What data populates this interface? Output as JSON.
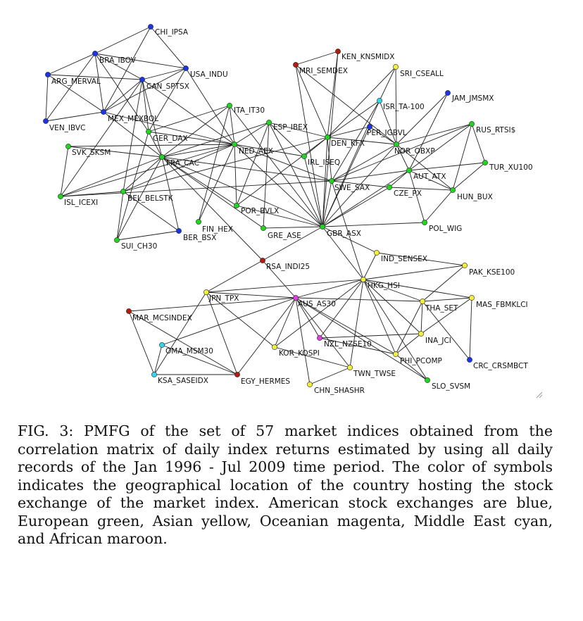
{
  "figure": {
    "caption": "FIG. 3: PMFG of the set of 57 market indices obtained from the correlation matrix of daily index returns estimated by using all daily records of the Jan 1996 - Jul 2009 time period. The color of symbols indicates the geographical location of the country hosting the stock exchange of the market index. American stock exchanges are blue, European green, Asian yellow, Oceanian magenta, Middle East cyan, and African maroon."
  },
  "colors": {
    "America": "#1a35e8",
    "Europe": "#1fd51f",
    "Asia": "#f3ee3a",
    "Oceania": "#e040e0",
    "MiddleEast": "#33d6e8",
    "Africa": "#b01c10"
  },
  "graph": {
    "nodes": [
      {
        "id": "CHI_IPSA",
        "label": "CHI_IPSA",
        "region": "America"
      },
      {
        "id": "BRA_IBOV",
        "label": "BRA_IBOV",
        "region": "America"
      },
      {
        "id": "USA_INDU",
        "label": "USA_INDU",
        "region": "America"
      },
      {
        "id": "ARG_MERVAL",
        "label": "ARG_MERVAL",
        "region": "America"
      },
      {
        "id": "CAN_SPTSX",
        "label": "CAN_SPTSX",
        "region": "America"
      },
      {
        "id": "MEX_MEXBOL",
        "label": "MEX_MEXBOL",
        "region": "America"
      },
      {
        "id": "VEN_IBVC",
        "label": "VEN_IBVC",
        "region": "America"
      },
      {
        "id": "ITA_IT30",
        "label": "ITA_IT30",
        "region": "Europe"
      },
      {
        "id": "GER_DAX",
        "label": "GER_DAX",
        "region": "Europe"
      },
      {
        "id": "ESP_IBEX",
        "label": "ESP_IBEX",
        "region": "Europe"
      },
      {
        "id": "NED_AEX",
        "label": "NED_AEX",
        "region": "Europe"
      },
      {
        "id": "SVK_SKSM",
        "label": "SVK_SKSM",
        "region": "Europe"
      },
      {
        "id": "FRA_CAC",
        "label": "FRA_CAC",
        "region": "Europe"
      },
      {
        "id": "ISL_ICEXI",
        "label": "ISL_ICEXI",
        "region": "Europe"
      },
      {
        "id": "BEL_BELSTK",
        "label": "BEL_BELSTK",
        "region": "Europe"
      },
      {
        "id": "FIN_HEX",
        "label": "FIN_HEX",
        "region": "Europe"
      },
      {
        "id": "BER_BSX",
        "label": "BER_BSX",
        "region": "America"
      },
      {
        "id": "SUI_CH30",
        "label": "SUI_CH30",
        "region": "Europe"
      },
      {
        "id": "POR_BVLX",
        "label": "POR_BVLX",
        "region": "Europe"
      },
      {
        "id": "GRE_ASE",
        "label": "GRE_ASE",
        "region": "Europe"
      },
      {
        "id": "IRL_ISEQ",
        "label": "IRL_ISEQ",
        "region": "Europe"
      },
      {
        "id": "GBR_ASX",
        "label": "GBR_ASX",
        "region": "Europe"
      },
      {
        "id": "DEN_KFX",
        "label": "DEN_KFX",
        "region": "Europe"
      },
      {
        "id": "MRI_SEMDEX",
        "label": "MRI_SEMDEX",
        "region": "Africa"
      },
      {
        "id": "KEN_KNSMIDX",
        "label": "KEN_KNSMIDX",
        "region": "Africa"
      },
      {
        "id": "SRI_CSEALL",
        "label": "SRI_CSEALL",
        "region": "Asia"
      },
      {
        "id": "ISR_TA-100",
        "label": "ISR_TA-100",
        "region": "MiddleEast"
      },
      {
        "id": "PER_IGBVL",
        "label": "PER_IGBVL",
        "region": "America"
      },
      {
        "id": "NOR_OBXP",
        "label": "NOR_OBXP",
        "region": "Europe"
      },
      {
        "id": "JAM_JMSMX",
        "label": "JAM_JMSMX",
        "region": "America"
      },
      {
        "id": "RUS_RTSI$",
        "label": "RUS_RTSI$",
        "region": "Europe"
      },
      {
        "id": "TUR_XU100",
        "label": "TUR_XU100",
        "region": "Europe"
      },
      {
        "id": "AUT_ATX",
        "label": "AUT_ATX",
        "region": "Europe"
      },
      {
        "id": "SWE_SAX",
        "label": "SWE_SAX",
        "region": "Europe"
      },
      {
        "id": "CZE_PX",
        "label": "CZE_PX",
        "region": "Europe"
      },
      {
        "id": "HUN_BUX",
        "label": "HUN_BUX",
        "region": "Europe"
      },
      {
        "id": "POL_WIG",
        "label": "POL_WIG",
        "region": "Europe"
      },
      {
        "id": "RSA_INDI25",
        "label": "RSA_INDI25",
        "region": "Africa"
      },
      {
        "id": "IND_SENSEX",
        "label": "IND_SENSEX",
        "region": "Asia"
      },
      {
        "id": "PAK_KSE100",
        "label": "PAK_KSE100",
        "region": "Asia"
      },
      {
        "id": "HKG_HSI",
        "label": "HKG_HSI",
        "region": "Asia"
      },
      {
        "id": "JPN_TPX",
        "label": "JPN_TPX",
        "region": "Asia"
      },
      {
        "id": "AUS_AS30",
        "label": "AUS_AS30",
        "region": "Oceania"
      },
      {
        "id": "THA_SET",
        "label": "THA_SET",
        "region": "Asia"
      },
      {
        "id": "MAS_FBMKLCI",
        "label": "MAS_FBMKLCI",
        "region": "Asia"
      },
      {
        "id": "MAR_MCSINDEX",
        "label": "MAR_MCSINDEX",
        "region": "Africa"
      },
      {
        "id": "INA_JCI",
        "label": "INA_JCI",
        "region": "Asia"
      },
      {
        "id": "NZL_NZSE10",
        "label": "NZL_NZSE10",
        "region": "Oceania"
      },
      {
        "id": "OMA_MSM30",
        "label": "OMA_MSM30",
        "region": "MiddleEast"
      },
      {
        "id": "KOR_KOSPI",
        "label": "KOR_KOSPI",
        "region": "Asia"
      },
      {
        "id": "PHI_PCOMP",
        "label": "PHI_PCOMP",
        "region": "Asia"
      },
      {
        "id": "CRC_CRSMBCT",
        "label": "CRC_CRSMBCT",
        "region": "America"
      },
      {
        "id": "TWN_TWSE",
        "label": "TWN_TWSE",
        "region": "Asia"
      },
      {
        "id": "KSA_SASEIDX",
        "label": "KSA_SASEIDX",
        "region": "MiddleEast"
      },
      {
        "id": "EGY_HERMES",
        "label": "EGY_HERMES",
        "region": "Africa"
      },
      {
        "id": "SLO_SVSM",
        "label": "SLO_SVSM",
        "region": "Europe"
      },
      {
        "id": "CHN_SHASHR",
        "label": "CHN_SHASHR",
        "region": "Asia"
      }
    ],
    "edges": [
      [
        "CHI_IPSA",
        "BRA_IBOV"
      ],
      [
        "CHI_IPSA",
        "USA_INDU"
      ],
      [
        "CHI_IPSA",
        "MEX_MEXBOL"
      ],
      [
        "BRA_IBOV",
        "ARG_MERVAL"
      ],
      [
        "BRA_IBOV",
        "MEX_MEXBOL"
      ],
      [
        "BRA_IBOV",
        "CAN_SPTSX"
      ],
      [
        "BRA_IBOV",
        "USA_INDU"
      ],
      [
        "BRA_IBOV",
        "VEN_IBVC"
      ],
      [
        "BRA_IBOV",
        "GER_DAX"
      ],
      [
        "ARG_MERVAL",
        "MEX_MEXBOL"
      ],
      [
        "ARG_MERVAL",
        "CAN_SPTSX"
      ],
      [
        "ARG_MERVAL",
        "VEN_IBVC"
      ],
      [
        "USA_INDU",
        "CAN_SPTSX"
      ],
      [
        "USA_INDU",
        "MEX_MEXBOL"
      ],
      [
        "USA_INDU",
        "GER_DAX"
      ],
      [
        "USA_INDU",
        "NED_AEX"
      ],
      [
        "CAN_SPTSX",
        "MEX_MEXBOL"
      ],
      [
        "CAN_SPTSX",
        "ISL_ICEXI"
      ],
      [
        "CAN_SPTSX",
        "BEL_BELSTK"
      ],
      [
        "CAN_SPTSX",
        "NED_AEX"
      ],
      [
        "CAN_SPTSX",
        "FRA_CAC"
      ],
      [
        "CAN_SPTSX",
        "GER_DAX"
      ],
      [
        "MEX_MEXBOL",
        "VEN_IBVC"
      ],
      [
        "MEX_MEXBOL",
        "FRA_CAC"
      ],
      [
        "MEX_MEXBOL",
        "NED_AEX"
      ],
      [
        "GER_DAX",
        "ITA_IT30"
      ],
      [
        "GER_DAX",
        "SUI_CH30"
      ],
      [
        "GER_DAX",
        "NED_AEX"
      ],
      [
        "GER_DAX",
        "FRA_CAC"
      ],
      [
        "ITA_IT30",
        "FRA_CAC"
      ],
      [
        "ITA_IT30",
        "NED_AEX"
      ],
      [
        "ITA_IT30",
        "GBR_ASX"
      ],
      [
        "ITA_IT30",
        "FIN_HEX"
      ],
      [
        "ESP_IBEX",
        "NED_AEX"
      ],
      [
        "ESP_IBEX",
        "FRA_CAC"
      ],
      [
        "ESP_IBEX",
        "DEN_KFX"
      ],
      [
        "ESP_IBEX",
        "GBR_ASX"
      ],
      [
        "ESP_IBEX",
        "POR_BVLX"
      ],
      [
        "ESP_IBEX",
        "GRE_ASE"
      ],
      [
        "ESP_IBEX",
        "IRL_ISEQ"
      ],
      [
        "NED_AEX",
        "FRA_CAC"
      ],
      [
        "NED_AEX",
        "ISL_ICEXI"
      ],
      [
        "NED_AEX",
        "IRL_ISEQ"
      ],
      [
        "NED_AEX",
        "GBR_ASX"
      ],
      [
        "NED_AEX",
        "BEL_BELSTK"
      ],
      [
        "NED_AEX",
        "SWE_SAX"
      ],
      [
        "NED_AEX",
        "FIN_HEX"
      ],
      [
        "NED_AEX",
        "POR_BVLX"
      ],
      [
        "NED_AEX",
        "SVK_SKSM"
      ],
      [
        "FRA_CAC",
        "SVK_SKSM"
      ],
      [
        "FRA_CAC",
        "ISL_ICEXI"
      ],
      [
        "FRA_CAC",
        "BEL_BELSTK"
      ],
      [
        "FRA_CAC",
        "SUI_CH30"
      ],
      [
        "FRA_CAC",
        "BER_BSX"
      ],
      [
        "FRA_CAC",
        "POR_BVLX"
      ],
      [
        "FRA_CAC",
        "GBR_ASX"
      ],
      [
        "FRA_CAC",
        "RSA_INDI25"
      ],
      [
        "FRA_CAC",
        "SWE_SAX"
      ],
      [
        "FRA_CAC",
        "GRE_ASE"
      ],
      [
        "SVK_SKSM",
        "ISL_ICEXI"
      ],
      [
        "ISL_ICEXI",
        "BEL_BELSTK"
      ],
      [
        "BEL_BELSTK",
        "SUI_CH30"
      ],
      [
        "BEL_BELSTK",
        "BER_BSX"
      ],
      [
        "BEL_BELSTK",
        "DEN_KFX"
      ],
      [
        "SUI_CH30",
        "BER_BSX"
      ],
      [
        "POR_BVLX",
        "GBR_ASX"
      ],
      [
        "POR_BVLX",
        "DEN_KFX"
      ],
      [
        "GRE_ASE",
        "GBR_ASX"
      ],
      [
        "IRL_ISEQ",
        "GBR_ASX"
      ],
      [
        "IRL_ISEQ",
        "DEN_KFX"
      ],
      [
        "GBR_ASX",
        "DEN_KFX"
      ],
      [
        "GBR_ASX",
        "SWE_SAX"
      ],
      [
        "GBR_ASX",
        "NOR_OBXP"
      ],
      [
        "GBR_ASX",
        "CZE_PX"
      ],
      [
        "GBR_ASX",
        "POL_WIG"
      ],
      [
        "GBR_ASX",
        "HKG_HSI"
      ],
      [
        "GBR_ASX",
        "IND_SENSEX"
      ],
      [
        "GBR_ASX",
        "RSA_INDI25"
      ],
      [
        "GBR_ASX",
        "MRI_SEMDEX"
      ],
      [
        "GBR_ASX",
        "KEN_KNSMIDX"
      ],
      [
        "GBR_ASX",
        "ISR_TA-100"
      ],
      [
        "GBR_ASX",
        "PER_IGBVL"
      ],
      [
        "GBR_ASX",
        "AUT_ATX"
      ],
      [
        "DEN_KFX",
        "MRI_SEMDEX"
      ],
      [
        "DEN_KFX",
        "KEN_KNSMIDX"
      ],
      [
        "DEN_KFX",
        "ISR_TA-100"
      ],
      [
        "DEN_KFX",
        "NOR_OBXP"
      ],
      [
        "DEN_KFX",
        "SWE_SAX"
      ],
      [
        "DEN_KFX",
        "PER_IGBVL"
      ],
      [
        "DEN_KFX",
        "SRI_CSEALL"
      ],
      [
        "MRI_SEMDEX",
        "KEN_KNSMIDX"
      ],
      [
        "MRI_SEMDEX",
        "NOR_OBXP"
      ],
      [
        "SRI_CSEALL",
        "NOR_OBXP"
      ],
      [
        "SRI_CSEALL",
        "ISR_TA-100"
      ],
      [
        "ISR_TA-100",
        "NOR_OBXP"
      ],
      [
        "ISR_TA-100",
        "SWE_SAX"
      ],
      [
        "PER_IGBVL",
        "NOR_OBXP"
      ],
      [
        "JAM_JMSMX",
        "NOR_OBXP"
      ],
      [
        "JAM_JMSMX",
        "AUT_ATX"
      ],
      [
        "NOR_OBXP",
        "SWE_SAX"
      ],
      [
        "NOR_OBXP",
        "RUS_RTSI$"
      ],
      [
        "NOR_OBXP",
        "AUT_ATX"
      ],
      [
        "NOR_OBXP",
        "HUN_BUX"
      ],
      [
        "RUS_RTSI$",
        "AUT_ATX"
      ],
      [
        "RUS_RTSI$",
        "TUR_XU100"
      ],
      [
        "RUS_RTSI$",
        "SWE_SAX"
      ],
      [
        "RUS_RTSI$",
        "HUN_BUX"
      ],
      [
        "TUR_XU100",
        "HUN_BUX"
      ],
      [
        "TUR_XU100",
        "AUT_ATX"
      ],
      [
        "AUT_ATX",
        "SWE_SAX"
      ],
      [
        "AUT_ATX",
        "HUN_BUX"
      ],
      [
        "AUT_ATX",
        "CZE_PX"
      ],
      [
        "AUT_ATX",
        "POL_WIG"
      ],
      [
        "SWE_SAX",
        "CZE_PX"
      ],
      [
        "SWE_SAX",
        "HKG_HSI"
      ],
      [
        "SWE_SAX",
        "ISL_ICEXI"
      ],
      [
        "HUN_BUX",
        "CZE_PX"
      ],
      [
        "HUN_BUX",
        "POL_WIG"
      ],
      [
        "RSA_INDI25",
        "AUS_AS30"
      ],
      [
        "RSA_INDI25",
        "JPN_TPX"
      ],
      [
        "IND_SENSEX",
        "HKG_HSI"
      ],
      [
        "IND_SENSEX",
        "PAK_KSE100"
      ],
      [
        "PAK_KSE100",
        "HKG_HSI"
      ],
      [
        "PAK_KSE100",
        "THA_SET"
      ],
      [
        "HKG_HSI",
        "JPN_TPX"
      ],
      [
        "HKG_HSI",
        "AUS_AS30"
      ],
      [
        "HKG_HSI",
        "THA_SET"
      ],
      [
        "HKG_HSI",
        "MAS_FBMKLCI"
      ],
      [
        "HKG_HSI",
        "INA_JCI"
      ],
      [
        "HKG_HSI",
        "KOR_KOSPI"
      ],
      [
        "HKG_HSI",
        "NZL_NZSE10"
      ],
      [
        "HKG_HSI",
        "PHI_PCOMP"
      ],
      [
        "HKG_HSI",
        "TWN_TWSE"
      ],
      [
        "HKG_HSI",
        "SLO_SVSM"
      ],
      [
        "JPN_TPX",
        "AUS_AS30"
      ],
      [
        "JPN_TPX",
        "KOR_KOSPI"
      ],
      [
        "JPN_TPX",
        "KSA_SASEIDX"
      ],
      [
        "JPN_TPX",
        "EGY_HERMES"
      ],
      [
        "AUS_AS30",
        "MAR_MCSINDEX"
      ],
      [
        "AUS_AS30",
        "NZL_NZSE10"
      ],
      [
        "AUS_AS30",
        "KOR_KOSPI"
      ],
      [
        "AUS_AS30",
        "TWN_TWSE"
      ],
      [
        "AUS_AS30",
        "CHN_SHASHR"
      ],
      [
        "AUS_AS30",
        "EGY_HERMES"
      ],
      [
        "AUS_AS30",
        "THA_SET"
      ],
      [
        "AUS_AS30",
        "OMA_MSM30"
      ],
      [
        "AUS_AS30",
        "PHI_PCOMP"
      ],
      [
        "AUS_AS30",
        "SLO_SVSM"
      ],
      [
        "THA_SET",
        "MAS_FBMKLCI"
      ],
      [
        "THA_SET",
        "INA_JCI"
      ],
      [
        "THA_SET",
        "CRC_CRSMBCT"
      ],
      [
        "THA_SET",
        "PHI_PCOMP"
      ],
      [
        "MAS_FBMKLCI",
        "INA_JCI"
      ],
      [
        "MAS_FBMKLCI",
        "CRC_CRSMBCT"
      ],
      [
        "INA_JCI",
        "PHI_PCOMP"
      ],
      [
        "INA_JCI",
        "NZL_NZSE10"
      ],
      [
        "MAR_MCSINDEX",
        "KSA_SASEIDX"
      ],
      [
        "MAR_MCSINDEX",
        "EGY_HERMES"
      ],
      [
        "OMA_MSM30",
        "KSA_SASEIDX"
      ],
      [
        "OMA_MSM30",
        "EGY_HERMES"
      ],
      [
        "KSA_SASEIDX",
        "EGY_HERMES"
      ],
      [
        "KOR_KOSPI",
        "TWN_TWSE"
      ],
      [
        "TWN_TWSE",
        "CHN_SHASHR"
      ],
      [
        "NZL_NZSE10",
        "PHI_PCOMP"
      ],
      [
        "PHI_PCOMP",
        "SLO_SVSM"
      ]
    ]
  }
}
